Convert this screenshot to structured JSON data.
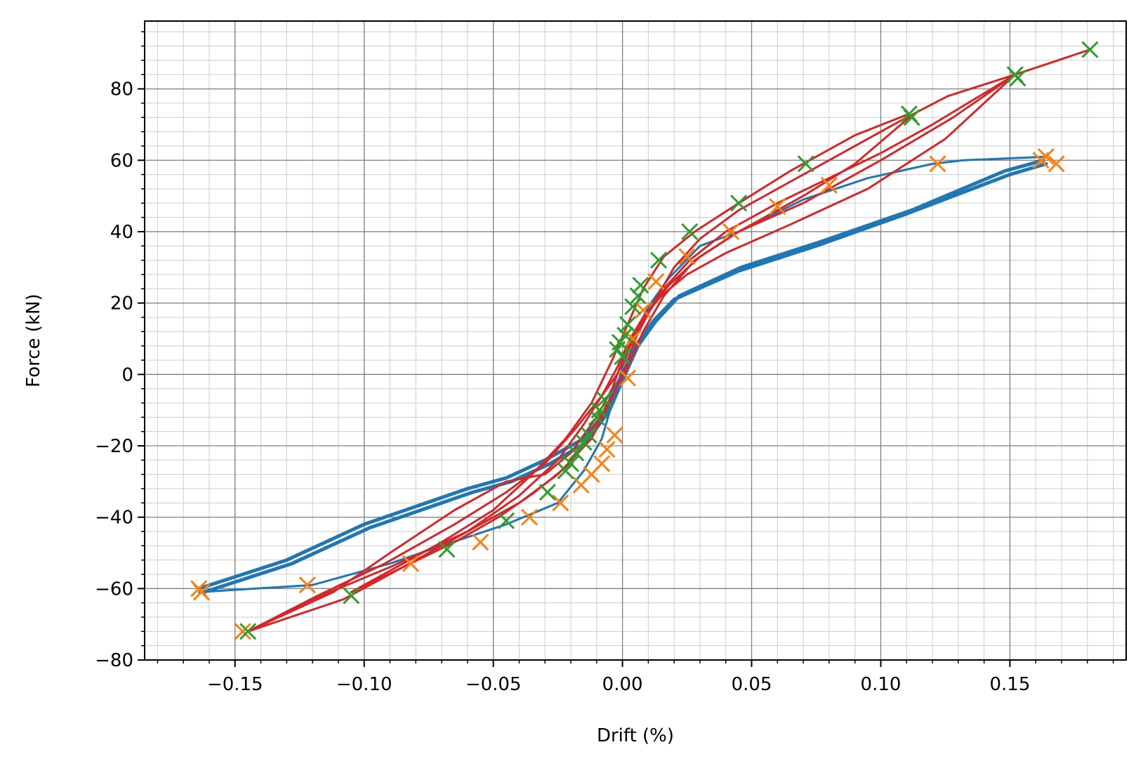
{
  "chart_data": {
    "type": "line",
    "title": "",
    "xlabel": "Drift (%)",
    "ylabel": "Force (kN)",
    "xlim": [
      -0.185,
      0.195
    ],
    "ylim": [
      -80,
      99
    ],
    "x_ticks": [
      -0.15,
      -0.1,
      -0.05,
      0.0,
      0.05,
      0.1,
      0.15
    ],
    "x_tick_labels": [
      "−0.15",
      "−0.10",
      "−0.05",
      "0.00",
      "0.05",
      "0.10",
      "0.15"
    ],
    "y_ticks": [
      -80,
      -60,
      -40,
      -20,
      0,
      20,
      40,
      60,
      80
    ],
    "y_tick_labels": [
      "−80",
      "−60",
      "−40",
      "−20",
      "0",
      "20",
      "40",
      "60",
      "80"
    ],
    "grid": true,
    "minor_grid": true,
    "colors": {
      "blue": "#1f77b4",
      "orange": "#ff7f0e",
      "green": "#2ca02c",
      "red": "#d62728",
      "major_grid": "#808080",
      "minor_grid": "#cccccc"
    },
    "series": [
      {
        "name": "blue-hysteresis-upper",
        "color": "#1f77b4",
        "style": "line",
        "width": 5,
        "x": [
          -0.164,
          -0.13,
          -0.1,
          -0.08,
          -0.06,
          -0.045,
          -0.03,
          -0.015,
          -0.006,
          -0.004,
          0.0,
          0.005,
          0.012,
          0.02,
          0.045,
          0.075,
          0.11,
          0.15,
          0.164
        ],
        "y": [
          -60,
          -52,
          -42,
          -37,
          -32,
          -29,
          -24,
          -18,
          -10,
          -5,
          0,
          8,
          15,
          21,
          29,
          36,
          45,
          56,
          59
        ]
      },
      {
        "name": "blue-hysteresis-upper-2",
        "color": "#1f77b4",
        "style": "line",
        "width": 5,
        "x": [
          -0.162,
          -0.128,
          -0.098,
          -0.078,
          -0.058,
          -0.043,
          -0.028,
          -0.014,
          -0.005,
          0.001,
          0.006,
          0.013,
          0.022,
          0.046,
          0.076,
          0.112,
          0.148,
          0.163
        ],
        "y": [
          -61,
          -53,
          -43,
          -38,
          -33,
          -30,
          -25,
          -19,
          -10,
          0,
          8,
          15,
          22,
          30,
          37,
          46,
          57,
          60
        ]
      },
      {
        "name": "blue-hysteresis-lower",
        "color": "#1f77b4",
        "style": "line",
        "width": 3,
        "x": [
          0.164,
          0.132,
          0.12,
          0.095,
          0.07,
          0.045,
          0.03,
          0.018,
          0.01,
          0.004,
          0.0,
          -0.004,
          -0.008,
          -0.015,
          -0.025,
          -0.045,
          -0.07,
          -0.09,
          -0.12,
          -0.164
        ],
        "y": [
          61,
          60,
          59,
          55,
          49,
          40,
          36,
          27,
          19,
          10,
          2,
          -8,
          -18,
          -27,
          -36,
          -42,
          -48,
          -53,
          -59,
          -61
        ]
      },
      {
        "name": "red-hysteresis-1",
        "color": "#d62728",
        "style": "line",
        "width": 3,
        "x": [
          -0.145,
          -0.12,
          -0.09,
          -0.06,
          -0.04,
          -0.025,
          -0.012,
          -0.005,
          0.0,
          0.005,
          0.012,
          0.02,
          0.03,
          0.045,
          0.065,
          0.09,
          0.11,
          0.126,
          0.152,
          0.181
        ],
        "y": [
          -72,
          -63,
          -54,
          -44,
          -36,
          -28,
          -18,
          -8,
          0,
          10,
          20,
          30,
          38,
          46,
          54,
          64,
          72,
          78,
          84,
          91
        ]
      },
      {
        "name": "red-hysteresis-2",
        "color": "#d62728",
        "style": "line",
        "width": 3,
        "x": [
          -0.145,
          -0.118,
          -0.092,
          -0.065,
          -0.045,
          -0.03,
          -0.018,
          -0.008,
          -0.002,
          0.003,
          0.009,
          0.016,
          0.026,
          0.04,
          0.06,
          0.08,
          0.1,
          0.12,
          0.152
        ],
        "y": [
          -72,
          -62,
          -53,
          -42,
          -33,
          -25,
          -15,
          -6,
          0,
          8,
          16,
          24,
          32,
          40,
          48,
          55,
          62,
          70,
          84
        ]
      },
      {
        "name": "red-hysteresis-3",
        "color": "#d62728",
        "style": "line",
        "width": 3,
        "x": [
          0.152,
          0.128,
          0.1,
          0.07,
          0.045,
          0.03,
          0.018,
          0.01,
          0.004,
          0.0,
          -0.004,
          -0.01,
          -0.02,
          -0.03,
          -0.045,
          -0.065,
          -0.09,
          -0.112,
          -0.145
        ],
        "y": [
          84,
          72,
          60,
          48,
          40,
          33,
          25,
          18,
          10,
          4,
          -4,
          -12,
          -22,
          -28,
          -30,
          -38,
          -50,
          -61,
          -72
        ]
      },
      {
        "name": "red-hysteresis-4",
        "color": "#d62728",
        "style": "line",
        "width": 3,
        "x": [
          0.152,
          0.125,
          0.095,
          0.065,
          0.04,
          0.025,
          0.015,
          0.008,
          0.003,
          -0.002,
          -0.008,
          -0.015,
          -0.025,
          -0.04,
          -0.06,
          -0.085,
          -0.108,
          -0.145
        ],
        "y": [
          84,
          66,
          52,
          42,
          34,
          28,
          22,
          16,
          10,
          2,
          -6,
          -14,
          -24,
          -34,
          -44,
          -54,
          -63,
          -72
        ]
      },
      {
        "name": "red-hysteresis-5",
        "color": "#d62728",
        "style": "line",
        "width": 3,
        "x": [
          0.111,
          0.09,
          0.065,
          0.045,
          0.028,
          0.016,
          0.008,
          0.002,
          -0.004,
          -0.012,
          -0.022,
          -0.035,
          -0.05,
          -0.07,
          -0.09,
          -0.105
        ],
        "y": [
          73,
          67,
          57,
          48,
          40,
          33,
          24,
          14,
          4,
          -8,
          -18,
          -28,
          -38,
          -47,
          -55,
          -61
        ]
      },
      {
        "name": "red-hysteresis-6",
        "color": "#d62728",
        "style": "line",
        "width": 3,
        "x": [
          -0.105,
          -0.085,
          -0.065,
          -0.048,
          -0.034,
          -0.022,
          -0.012,
          -0.004,
          0.002,
          0.008,
          0.016,
          0.028,
          0.045,
          0.07,
          0.09,
          0.111
        ],
        "y": [
          -61,
          -54,
          -47,
          -40,
          -33,
          -26,
          -16,
          -6,
          2,
          12,
          22,
          32,
          40,
          50,
          59,
          72
        ]
      },
      {
        "name": "orange-markers",
        "color": "#ff7f0e",
        "style": "marker",
        "x": [
          0.164,
          0.168,
          0.162,
          0.122,
          0.08,
          0.06,
          0.042,
          0.025,
          0.013,
          0.008,
          0.004,
          0.002,
          -0.003,
          -0.006,
          -0.008,
          -0.012,
          -0.016,
          -0.024,
          -0.036,
          -0.055,
          -0.082,
          -0.122,
          -0.164,
          -0.163,
          -0.147
        ],
        "y": [
          61,
          59,
          60,
          59,
          53,
          47,
          40,
          33,
          26,
          18,
          10,
          -1,
          -17,
          -21,
          -25,
          -28,
          -31,
          -36,
          -40,
          -47,
          -53,
          -59,
          -60,
          -61,
          -72
        ]
      },
      {
        "name": "green-markers",
        "color": "#2ca02c",
        "style": "marker",
        "x": [
          0.181,
          0.152,
          0.153,
          0.111,
          0.112,
          0.071,
          0.045,
          0.026,
          0.014,
          0.007,
          0.006,
          0.004,
          0.002,
          0.001,
          -0.001,
          0.0,
          -0.002,
          -0.007,
          -0.009,
          -0.01,
          -0.013,
          -0.015,
          -0.018,
          -0.02,
          -0.022,
          -0.029,
          -0.045,
          -0.068,
          -0.105,
          -0.145
        ],
        "y": [
          91,
          84,
          83,
          73,
          72,
          59,
          48,
          40,
          32,
          25,
          22,
          19,
          14,
          11,
          9,
          5,
          7,
          -7,
          -10,
          -12,
          -17,
          -19,
          -22,
          -25,
          -27,
          -33,
          -41,
          -49,
          -62,
          -72
        ]
      }
    ]
  }
}
